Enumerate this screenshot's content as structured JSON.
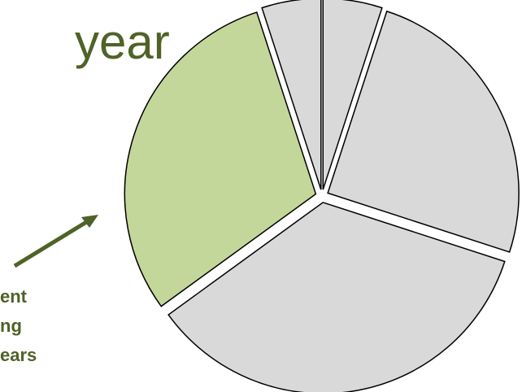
{
  "title_fragment": "year",
  "callout_lines": [
    "ent",
    "ng",
    "ears"
  ],
  "colors": {
    "text": "#4f6228",
    "highlight_slice": "#c4d79b",
    "other_slices": "#d9d9d9",
    "slice_border": "#000000",
    "arrow": "#4f6228"
  },
  "chart_data": {
    "type": "pie",
    "exploded": true,
    "values": [
      5,
      25,
      35,
      30,
      5
    ],
    "highlighted_index": 3,
    "title": "",
    "legend": "none"
  }
}
